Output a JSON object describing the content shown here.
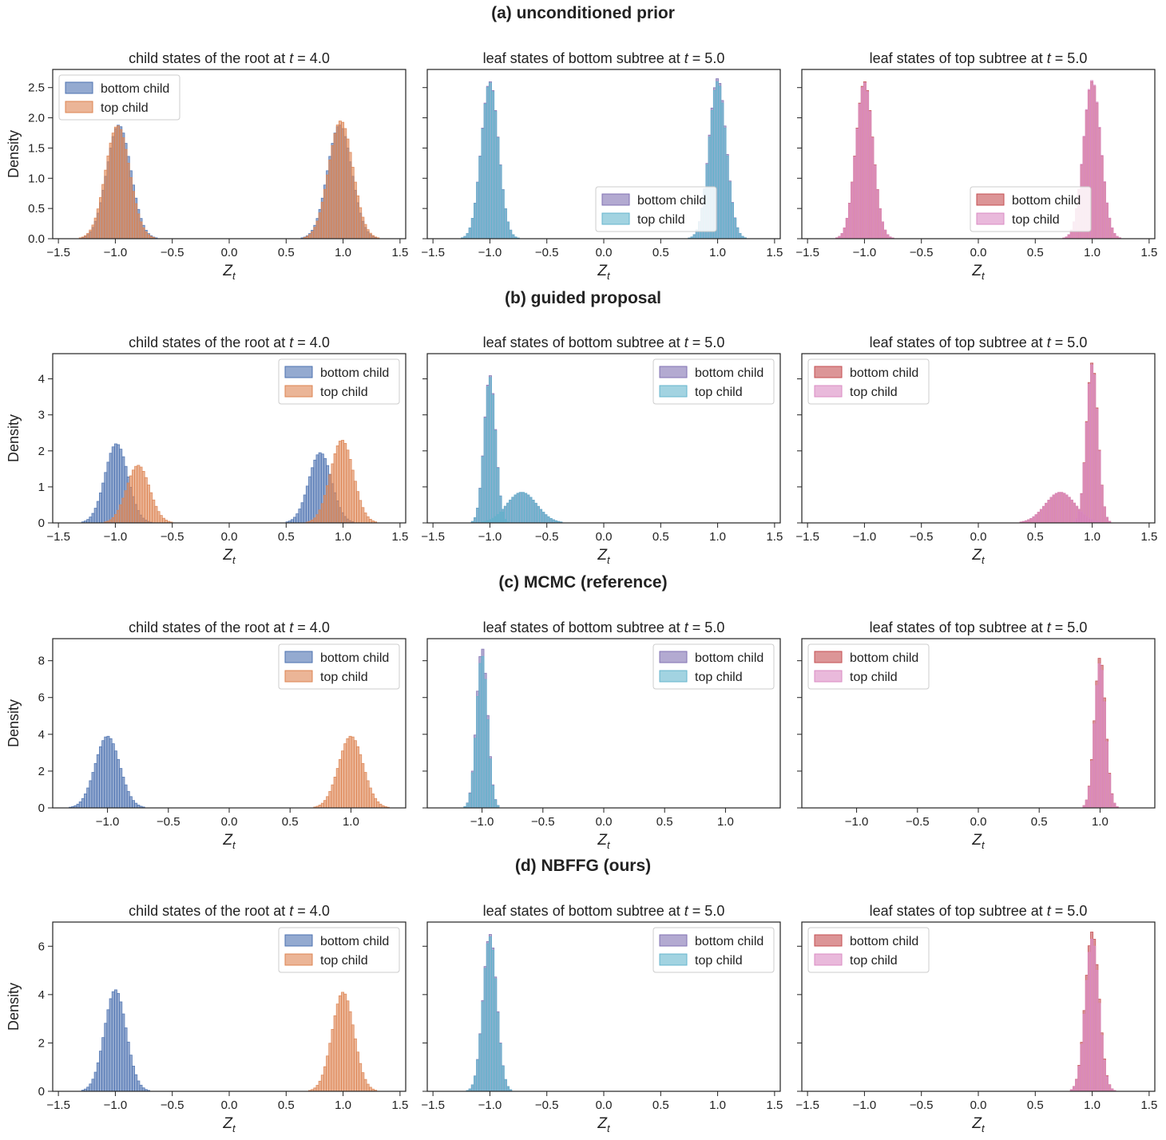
{
  "chart_data": [
    {
      "row_title": "(a) unconditioned prior",
      "panels": [
        {
          "type": "histogram",
          "title": "child states of the root at t = 4.0",
          "xlabel": "Z_t",
          "ylabel": "Density",
          "xlim": [
            -1.55,
            1.55
          ],
          "xticks": [
            "−1.5",
            "−1.0",
            "−0.5",
            "0.0",
            "0.5",
            "1.0",
            "1.5"
          ],
          "ylim": [
            0,
            2.8
          ],
          "yticks": [
            "0.0",
            "0.5",
            "1.0",
            "1.5",
            "2.0",
            "2.5"
          ],
          "legend": {
            "location": "upper-left",
            "entries": [
              "bottom child",
              "top child"
            ]
          },
          "series": [
            {
              "name": "bottom child",
              "color": "#4c72b0",
              "modes": [
                {
                  "mu": -0.97,
                  "sd": 0.105,
                  "peak": 1.88
                },
                {
                  "mu": 0.97,
                  "sd": 0.105,
                  "peak": 1.88
                }
              ]
            },
            {
              "name": "top child",
              "color": "#dd8452",
              "modes": [
                {
                  "mu": -0.98,
                  "sd": 0.105,
                  "peak": 1.87
                },
                {
                  "mu": 0.98,
                  "sd": 0.105,
                  "peak": 1.95
                }
              ]
            }
          ]
        },
        {
          "type": "histogram",
          "title": "leaf states of bottom subtree at t = 5.0",
          "xlabel": "Z_t",
          "ylabel": "",
          "xlim": [
            -1.55,
            1.55
          ],
          "xticks": [
            "−1.5",
            "−1.0",
            "−0.5",
            "0.0",
            "0.5",
            "1.0",
            "1.5"
          ],
          "ylim": [
            0,
            2.8
          ],
          "yticks": [],
          "legend": {
            "location": "lower-center",
            "entries": [
              "bottom child",
              "top child"
            ]
          },
          "series": [
            {
              "name": "bottom child",
              "color": "#8172b3",
              "modes": [
                {
                  "mu": -1.0,
                  "sd": 0.075,
                  "peak": 2.6
                },
                {
                  "mu": 1.0,
                  "sd": 0.075,
                  "peak": 2.65
                }
              ]
            },
            {
              "name": "top child",
              "color": "#64b5cd",
              "modes": [
                {
                  "mu": -1.0,
                  "sd": 0.075,
                  "peak": 2.58
                },
                {
                  "mu": 1.0,
                  "sd": 0.075,
                  "peak": 2.6
                }
              ]
            }
          ]
        },
        {
          "type": "histogram",
          "title": "leaf states of top subtree at t = 5.0",
          "xlabel": "Z_t",
          "ylabel": "",
          "xlim": [
            -1.55,
            1.55
          ],
          "xticks": [
            "−1.5",
            "−1.0",
            "−0.5",
            "0.0",
            "0.5",
            "1.0",
            "1.5"
          ],
          "ylim": [
            0,
            2.8
          ],
          "yticks": [],
          "legend": {
            "location": "lower-center",
            "entries": [
              "bottom child",
              "top child"
            ]
          },
          "series": [
            {
              "name": "bottom child",
              "color": "#c44e52",
              "modes": [
                {
                  "mu": -1.0,
                  "sd": 0.075,
                  "peak": 2.6
                },
                {
                  "mu": 1.0,
                  "sd": 0.075,
                  "peak": 2.6
                }
              ]
            },
            {
              "name": "top child",
              "color": "#da8bc3",
              "modes": [
                {
                  "mu": -1.0,
                  "sd": 0.075,
                  "peak": 2.58
                },
                {
                  "mu": 1.0,
                  "sd": 0.075,
                  "peak": 2.62
                }
              ]
            }
          ]
        }
      ]
    },
    {
      "row_title": "(b) guided proposal",
      "panels": [
        {
          "type": "histogram",
          "title": "child states of the root at t = 4.0",
          "xlabel": "Z_t",
          "ylabel": "Density",
          "xlim": [
            -1.55,
            1.55
          ],
          "xticks": [
            "−1.5",
            "−1.0",
            "−0.5",
            "0.0",
            "0.5",
            "1.0",
            "1.5"
          ],
          "ylim": [
            0,
            4.7
          ],
          "yticks": [
            "0",
            "1",
            "2",
            "3",
            "4"
          ],
          "legend": {
            "location": "upper-right",
            "entries": [
              "bottom child",
              "top child"
            ]
          },
          "series": [
            {
              "name": "bottom child",
              "color": "#4c72b0",
              "modes": [
                {
                  "mu": -0.99,
                  "sd": 0.1,
                  "peak": 2.2
                },
                {
                  "mu": 0.8,
                  "sd": 0.1,
                  "peak": 1.95
                }
              ]
            },
            {
              "name": "top child",
              "color": "#dd8452",
              "modes": [
                {
                  "mu": -0.8,
                  "sd": 0.1,
                  "peak": 1.6
                },
                {
                  "mu": 0.99,
                  "sd": 0.1,
                  "peak": 2.3
                }
              ]
            }
          ]
        },
        {
          "type": "histogram",
          "title": "leaf states of bottom subtree at t = 5.0",
          "xlabel": "Z_t",
          "ylabel": "",
          "xlim": [
            -1.55,
            1.55
          ],
          "xticks": [
            "−1.5",
            "−1.0",
            "−0.5",
            "0.0",
            "0.5",
            "1.0",
            "1.5"
          ],
          "ylim": [
            0,
            4.7
          ],
          "yticks": [],
          "legend": {
            "location": "upper-right",
            "entries": [
              "bottom child",
              "top child"
            ]
          },
          "series": [
            {
              "name": "bottom child",
              "color": "#8172b3",
              "modes": [
                {
                  "mu": -1.0,
                  "sd": 0.05,
                  "peak": 4.1
                },
                {
                  "mu": -0.72,
                  "sd": 0.13,
                  "peak": 0.85
                }
              ]
            },
            {
              "name": "top child",
              "color": "#64b5cd",
              "modes": [
                {
                  "mu": -1.0,
                  "sd": 0.05,
                  "peak": 4.05
                },
                {
                  "mu": -0.72,
                  "sd": 0.13,
                  "peak": 0.85
                }
              ]
            }
          ]
        },
        {
          "type": "histogram",
          "title": "leaf states of top subtree at t = 5.0",
          "xlabel": "Z_t",
          "ylabel": "",
          "xlim": [
            -1.55,
            1.55
          ],
          "xticks": [
            "−1.5",
            "−1.0",
            "−0.5",
            "0.0",
            "0.5",
            "1.0",
            "1.5"
          ],
          "ylim": [
            0,
            4.7
          ],
          "yticks": [],
          "legend": {
            "location": "upper-left",
            "entries": [
              "bottom child",
              "top child"
            ]
          },
          "series": [
            {
              "name": "bottom child",
              "color": "#c44e52",
              "modes": [
                {
                  "mu": 1.0,
                  "sd": 0.05,
                  "peak": 4.45
                },
                {
                  "mu": 0.72,
                  "sd": 0.13,
                  "peak": 0.85
                }
              ]
            },
            {
              "name": "top child",
              "color": "#da8bc3",
              "modes": [
                {
                  "mu": 1.0,
                  "sd": 0.05,
                  "peak": 4.4
                },
                {
                  "mu": 0.72,
                  "sd": 0.13,
                  "peak": 0.85
                }
              ]
            }
          ]
        }
      ]
    },
    {
      "row_title": "(c) MCMC (reference)",
      "panels": [
        {
          "type": "histogram",
          "title": "child states of the root at t = 4.0",
          "xlabel": "Z_t",
          "ylabel": "Density",
          "xlim": [
            -1.45,
            1.45
          ],
          "xticks": [
            "−1.0",
            "−0.5",
            "0.0",
            "0.5",
            "1.0"
          ],
          "ylim": [
            0,
            9.2
          ],
          "yticks": [
            "0",
            "2",
            "4",
            "6",
            "8"
          ],
          "legend": {
            "location": "upper-right",
            "entries": [
              "bottom child",
              "top child"
            ]
          },
          "series": [
            {
              "name": "bottom child",
              "color": "#4c72b0",
              "modes": [
                {
                  "mu": -1.0,
                  "sd": 0.1,
                  "peak": 3.9
                }
              ]
            },
            {
              "name": "top child",
              "color": "#dd8452",
              "modes": [
                {
                  "mu": 1.0,
                  "sd": 0.1,
                  "peak": 3.9
                }
              ]
            }
          ]
        },
        {
          "type": "histogram",
          "title": "leaf states of bottom subtree at t = 5.0",
          "xlabel": "Z_t",
          "ylabel": "",
          "xlim": [
            -1.45,
            1.45
          ],
          "xticks": [
            "−1.0",
            "−0.5",
            "0.0",
            "0.5",
            "1.0"
          ],
          "ylim": [
            0,
            9.2
          ],
          "yticks": [],
          "legend": {
            "location": "upper-right",
            "entries": [
              "bottom child",
              "top child"
            ]
          },
          "series": [
            {
              "name": "bottom child",
              "color": "#8172b3",
              "modes": [
                {
                  "mu": -1.0,
                  "sd": 0.045,
                  "peak": 8.7
                }
              ]
            },
            {
              "name": "top child",
              "color": "#64b5cd",
              "modes": [
                {
                  "mu": -1.0,
                  "sd": 0.045,
                  "peak": 8.3
                }
              ]
            }
          ]
        },
        {
          "type": "histogram",
          "title": "leaf states of top subtree at t = 5.0",
          "xlabel": "Z_t",
          "ylabel": "",
          "xlim": [
            -1.45,
            1.45
          ],
          "xticks": [
            "−1.0",
            "−0.5",
            "0.0",
            "0.5",
            "1.0"
          ],
          "ylim": [
            0,
            9.2
          ],
          "yticks": [],
          "legend": {
            "location": "upper-left",
            "entries": [
              "bottom child",
              "top child"
            ]
          },
          "series": [
            {
              "name": "bottom child",
              "color": "#c44e52",
              "modes": [
                {
                  "mu": 1.0,
                  "sd": 0.045,
                  "peak": 8.2
                }
              ]
            },
            {
              "name": "top child",
              "color": "#da8bc3",
              "modes": [
                {
                  "mu": 1.0,
                  "sd": 0.045,
                  "peak": 7.9
                }
              ]
            }
          ]
        }
      ]
    },
    {
      "row_title": "(d) NBFFG (ours)",
      "panels": [
        {
          "type": "histogram",
          "title": "child states of the root at t = 4.0",
          "xlabel": "Z_t",
          "ylabel": "Density",
          "xlim": [
            -1.55,
            1.55
          ],
          "xticks": [
            "−1.5",
            "−1.0",
            "−0.5",
            "0.0",
            "0.5",
            "1.0",
            "1.5"
          ],
          "ylim": [
            0,
            7.0
          ],
          "yticks": [
            "0",
            "2",
            "4",
            "6"
          ],
          "legend": {
            "location": "upper-right",
            "entries": [
              "bottom child",
              "top child"
            ]
          },
          "series": [
            {
              "name": "bottom child",
              "color": "#4c72b0",
              "modes": [
                {
                  "mu": -1.0,
                  "sd": 0.095,
                  "peak": 4.2
                }
              ]
            },
            {
              "name": "top child",
              "color": "#dd8452",
              "modes": [
                {
                  "mu": 1.0,
                  "sd": 0.095,
                  "peak": 4.1
                }
              ]
            }
          ]
        },
        {
          "type": "histogram",
          "title": "leaf states of bottom subtree at t = 5.0",
          "xlabel": "Z_t",
          "ylabel": "",
          "xlim": [
            -1.55,
            1.55
          ],
          "xticks": [
            "−1.5",
            "−1.0",
            "−0.5",
            "0.0",
            "0.5",
            "1.0",
            "1.5"
          ],
          "ylim": [
            0,
            7.0
          ],
          "yticks": [],
          "legend": {
            "location": "upper-right",
            "entries": [
              "bottom child",
              "top child"
            ]
          },
          "series": [
            {
              "name": "bottom child",
              "color": "#8172b3",
              "modes": [
                {
                  "mu": -1.0,
                  "sd": 0.06,
                  "peak": 6.5
                }
              ]
            },
            {
              "name": "top child",
              "color": "#64b5cd",
              "modes": [
                {
                  "mu": -1.0,
                  "sd": 0.06,
                  "peak": 6.4
                }
              ]
            }
          ]
        },
        {
          "type": "histogram",
          "title": "leaf states of top subtree at t = 5.0",
          "xlabel": "Z_t",
          "ylabel": "",
          "xlim": [
            -1.55,
            1.55
          ],
          "xticks": [
            "−1.5",
            "−1.0",
            "−0.5",
            "0.0",
            "0.5",
            "1.0",
            "1.5"
          ],
          "ylim": [
            0,
            7.0
          ],
          "yticks": [],
          "legend": {
            "location": "upper-left",
            "entries": [
              "bottom child",
              "top child"
            ]
          },
          "series": [
            {
              "name": "bottom child",
              "color": "#c44e52",
              "modes": [
                {
                  "mu": 1.0,
                  "sd": 0.06,
                  "peak": 6.6
                }
              ]
            },
            {
              "name": "top child",
              "color": "#da8bc3",
              "modes": [
                {
                  "mu": 1.0,
                  "sd": 0.06,
                  "peak": 6.3
                }
              ]
            }
          ]
        }
      ]
    }
  ]
}
